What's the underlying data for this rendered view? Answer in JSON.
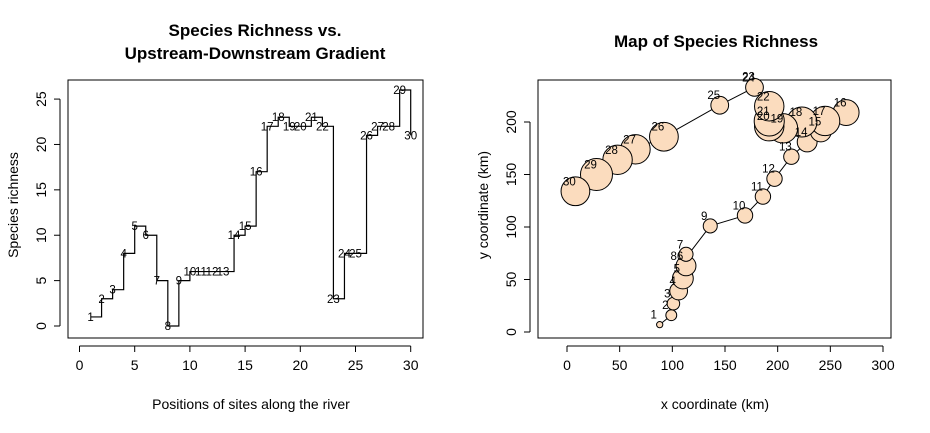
{
  "chart_data": [
    {
      "type": "line",
      "title_lines": [
        "Species Richness vs.",
        "Upstream-Downstream Gradient"
      ],
      "xlabel": "Positions of sites along the river",
      "ylabel": "Species richness",
      "xlim": [
        0,
        30
      ],
      "ylim": [
        0,
        26
      ],
      "xticks": [
        0,
        5,
        10,
        15,
        20,
        25,
        30
      ],
      "yticks": [
        0,
        5,
        10,
        15,
        20,
        25
      ],
      "step": "s",
      "x": [
        1,
        2,
        3,
        4,
        5,
        6,
        7,
        8,
        9,
        10,
        11,
        12,
        13,
        14,
        15,
        16,
        17,
        18,
        19,
        20,
        21,
        22,
        23,
        24,
        25,
        26,
        27,
        28,
        29,
        30
      ],
      "y": [
        1,
        3,
        4,
        8,
        11,
        10,
        5,
        0,
        5,
        6,
        6,
        6,
        6,
        10,
        11,
        17,
        22,
        23,
        22,
        22,
        23,
        22,
        3,
        8,
        8,
        21,
        22,
        22,
        26,
        21
      ],
      "labels": [
        "1",
        "2",
        "3",
        "4",
        "5",
        "6",
        "7",
        "8",
        "9",
        "10",
        "11",
        "12",
        "13",
        "14",
        "15",
        "16",
        "17",
        "18",
        "19",
        "20",
        "21",
        "22",
        "23",
        "24",
        "25",
        "26",
        "27",
        "28",
        "29",
        "30"
      ],
      "grid": false
    },
    {
      "type": "scatter",
      "title": "Map of Species Richness",
      "xlabel": "x coordinate (km)",
      "ylabel": "y coordinate (km)",
      "xlim": [
        -30,
        300
      ],
      "ylim": [
        0,
        235
      ],
      "xticks": [
        0,
        50,
        100,
        150,
        200,
        250,
        300
      ],
      "yticks": [
        0,
        50,
        100,
        150,
        200
      ],
      "marker_fill": "#fbdcbe",
      "marker_size_variable": "Species richness",
      "x": [
        88,
        99,
        101,
        106,
        110,
        113,
        113,
        107,
        136,
        169,
        186,
        197,
        213,
        228,
        241,
        265,
        245,
        223,
        205,
        192,
        192,
        192,
        178,
        178,
        145,
        92,
        65,
        48,
        28,
        8
      ],
      "y": [
        7,
        16,
        27,
        39,
        51,
        63,
        74,
        63,
        101,
        111,
        129,
        146,
        167,
        181,
        191,
        209,
        201,
        200,
        194,
        196,
        201,
        215,
        234,
        233,
        216,
        186,
        174,
        164,
        150,
        134
      ],
      "richness": [
        1,
        3,
        4,
        8,
        11,
        10,
        5,
        0,
        5,
        6,
        6,
        6,
        6,
        10,
        11,
        17,
        22,
        23,
        22,
        22,
        23,
        22,
        3,
        8,
        8,
        21,
        22,
        22,
        26,
        21
      ],
      "labels": [
        "1",
        "2",
        "3",
        "4",
        "5",
        "6",
        "7",
        "8",
        "9",
        "10",
        "11",
        "12",
        "13",
        "14",
        "15",
        "16",
        "17",
        "18",
        "19",
        "20",
        "21",
        "22",
        "23",
        "24",
        "25",
        "26",
        "27",
        "28",
        "29",
        "30"
      ],
      "grid": false
    }
  ]
}
